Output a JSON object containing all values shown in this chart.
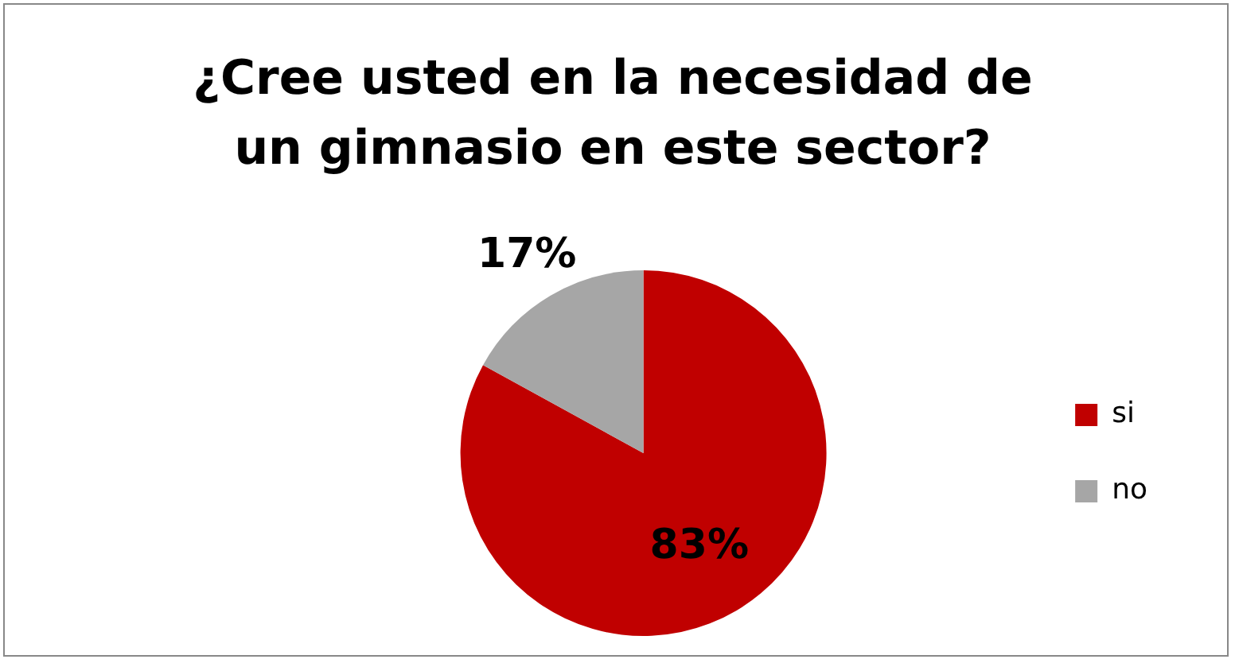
{
  "chart_data": {
    "type": "pie",
    "title": "¿Cree usted en la necesidad de un gimnasio en este sector?",
    "categories": [
      "si",
      "no"
    ],
    "values": [
      83,
      17
    ],
    "colors": [
      "#c00000",
      "#a6a6a6"
    ],
    "value_labels": [
      "83%",
      "17%"
    ],
    "legend": "right"
  }
}
